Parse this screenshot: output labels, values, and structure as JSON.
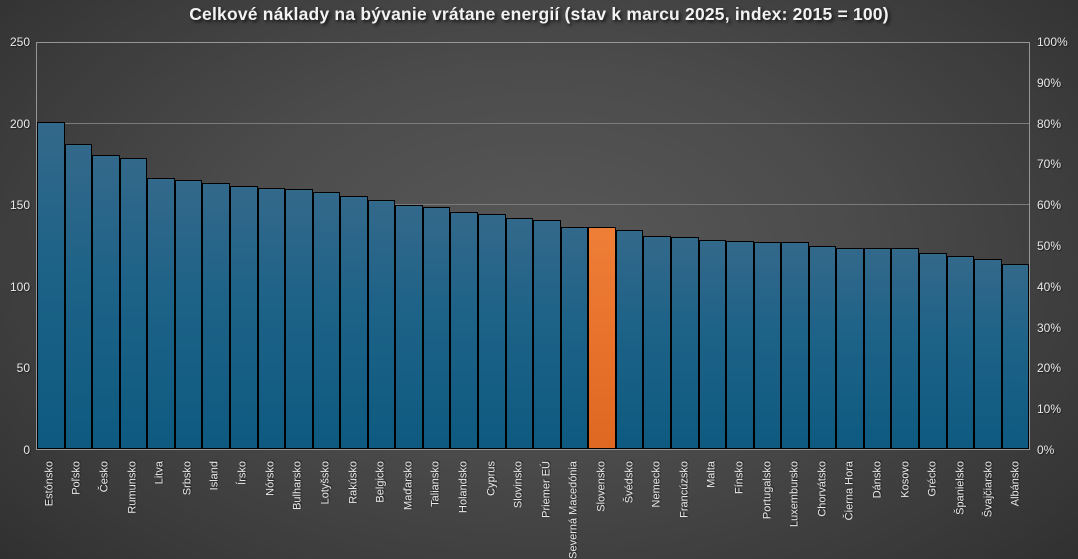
{
  "chart_data": {
    "type": "bar",
    "title": "Celkové náklady na bývanie vrátane energií (stav k marcu 2025, index: 2015 = 100)",
    "categories": [
      "Estónsko",
      "Poľsko",
      "Česko",
      "Rumunsko",
      "Litva",
      "Srbsko",
      "Island",
      "Írsko",
      "Nórsko",
      "Bulharsko",
      "Lotyšsko",
      "Rakúsko",
      "Belgicko",
      "Maďarsko",
      "Taliansko",
      "Holandsko",
      "Cyprus",
      "Slovinsko",
      "Priemer EÚ",
      "Severná Macedónia",
      "Slovensko",
      "Švédsko",
      "Nemecko",
      "Francúzsko",
      "Malta",
      "Fínsko",
      "Portugalsko",
      "Luxembursko",
      "Chorvátsko",
      "Čierna Hora",
      "Dánsko",
      "Kosovo",
      "Grécko",
      "Španielsko",
      "Švajčiarsko",
      "Albánsko"
    ],
    "values": [
      201.5,
      188,
      181,
      179.5,
      167,
      165.5,
      163.5,
      162,
      161,
      160,
      158,
      156,
      153.5,
      150,
      149,
      146,
      145,
      142,
      141,
      137,
      136.5,
      135,
      131,
      130.5,
      129,
      128,
      127.5,
      127.5,
      125,
      124,
      124,
      123.5,
      120.5,
      119,
      117,
      114
    ],
    "highlight": {
      "category": "Slovensko",
      "color": "#e8722c"
    },
    "left_axis": {
      "min": 0,
      "max": 250,
      "ticks": [
        "0",
        "50",
        "100",
        "150",
        "200",
        "250"
      ]
    },
    "right_axis": {
      "min": "0%",
      "max": "100%",
      "ticks": [
        "0%",
        "10%",
        "20%",
        "30%",
        "40%",
        "50%",
        "60%",
        "70%",
        "80%",
        "90%",
        "100%"
      ]
    },
    "gridlines": [
      50,
      100,
      150,
      200
    ],
    "legend": "none",
    "grid": "on",
    "colors": {
      "bar_top": "#33698b",
      "bar_bottom": "#0e5a80",
      "bar_border": "#000000",
      "highlight_top": "#ee7e37",
      "highlight_bottom": "#de6722",
      "gridline": "#7b7b7b",
      "plot_border": "#969696",
      "text": "#e9e9e9",
      "title_text": "#f2f2f2",
      "background_center": "#585858",
      "background_edge": "#272727"
    }
  }
}
